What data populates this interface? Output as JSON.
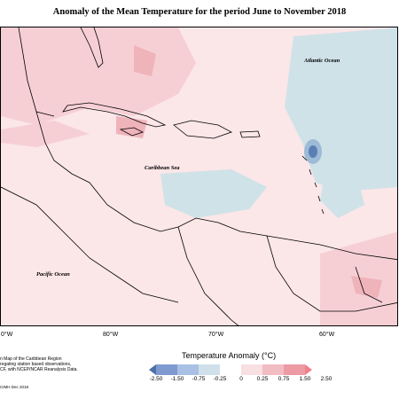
{
  "title": "Anomaly of the Mean Temperature for the period June to November 2018",
  "map": {
    "labels": {
      "atlantic": "Atlantic Ocean",
      "caribbean": "Caribbean Sea",
      "pacific": "Pacific Ocean"
    },
    "longitudes": [
      "0°W",
      "80°W",
      "70°W",
      "60°W"
    ],
    "colors": {
      "background": "#fbe6e8",
      "warm_light": "#f6cfd4",
      "warm_mid": "#efb3ba",
      "cool_light": "#cfe2e8",
      "cool_mid": "#9dbad7",
      "cool_dark": "#5a7fb3",
      "land_line": "#000000"
    }
  },
  "legend": {
    "title": "Temperature Anomaly (°C)",
    "ticks": [
      "-2.50",
      "-1.50",
      "-0.75",
      "-0.25",
      "0",
      "0.25",
      "0.75",
      "1.50",
      "2.50"
    ],
    "swatches": [
      "#4b6fa8",
      "#7f9ad0",
      "#a9c0e4",
      "#cfe0ea",
      "#ffffff",
      "#f8dfe2",
      "#f2bcc3",
      "#ee9aa5",
      "#f07f8c"
    ]
  },
  "description": {
    "lines": [
      "n Map of the Caribbean Region",
      "regating station based observations,",
      "CF, with NCEP/NCAR Reanalysis Data."
    ],
    "credit": "CIMH Dec 2018"
  }
}
